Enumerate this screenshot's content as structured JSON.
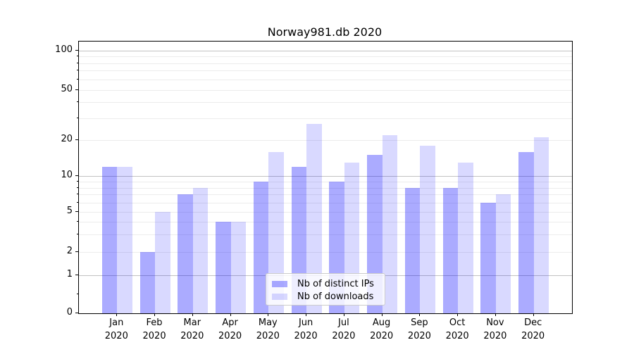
{
  "title": "Norway981.db 2020",
  "legend": {
    "items": [
      {
        "label": "Nb of distinct IPs"
      },
      {
        "label": "Nb of downloads"
      }
    ]
  },
  "chart_data": {
    "type": "bar",
    "title": "Norway981.db 2020",
    "categories": [
      "Jan 2020",
      "Feb 2020",
      "Mar 2020",
      "Apr 2020",
      "May 2020",
      "Jun 2020",
      "Jul 2020",
      "Aug 2020",
      "Sep 2020",
      "Oct 2020",
      "Nov 2020",
      "Dec 2020"
    ],
    "month_labels": [
      "Jan",
      "Feb",
      "Mar",
      "Apr",
      "May",
      "Jun",
      "Jul",
      "Aug",
      "Sep",
      "Oct",
      "Nov",
      "Dec"
    ],
    "year_label": "2020",
    "series": [
      {
        "name": "Nb of distinct IPs",
        "color": "rgba(0,0,255,0.33)",
        "color_hex_on_white": "#ababff",
        "values": [
          12,
          2,
          7,
          4,
          9,
          12,
          9,
          15,
          8,
          8,
          6,
          16
        ]
      },
      {
        "name": "Nb of downloads",
        "color": "rgba(0,0,255,0.15)",
        "color_hex_on_white": "#d9d9ff",
        "values": [
          12,
          5,
          8,
          4,
          16,
          27,
          13,
          22,
          18,
          13,
          7,
          21
        ]
      }
    ],
    "yscale": "log-like (symlog, linear below 1)",
    "ytick_labels": [
      "0",
      "1",
      "2",
      "5",
      "10",
      "20",
      "50",
      "100"
    ],
    "ytick_values": [
      0,
      1,
      2,
      5,
      10,
      20,
      50,
      100
    ],
    "ylim": [
      0,
      110
    ],
    "xlabel": "",
    "ylabel": "",
    "grid": true,
    "legend_position": "inside lower-center"
  }
}
